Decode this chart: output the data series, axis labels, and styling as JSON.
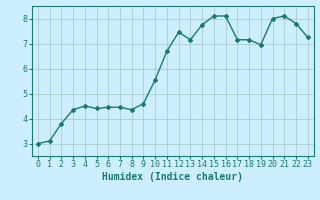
{
  "x": [
    0,
    1,
    2,
    3,
    4,
    5,
    6,
    7,
    8,
    9,
    10,
    11,
    12,
    13,
    14,
    15,
    16,
    17,
    18,
    19,
    20,
    21,
    22,
    23
  ],
  "y": [
    3.0,
    3.1,
    3.8,
    4.35,
    4.5,
    4.4,
    4.45,
    4.45,
    4.35,
    4.6,
    5.55,
    6.7,
    7.45,
    7.15,
    7.75,
    8.1,
    8.1,
    7.15,
    7.15,
    6.95,
    8.0,
    8.1,
    7.8,
    7.25
  ],
  "line_color": "#1a7a6e",
  "marker": "D",
  "marker_size": 2.0,
  "bg_color": "#cceeff",
  "grid_color": "#aacccc",
  "axis_color": "#1a7a6e",
  "xlabel": "Humidex (Indice chaleur)",
  "xlabel_fontsize": 7,
  "ylim": [
    2.5,
    8.5
  ],
  "xlim": [
    -0.5,
    23.5
  ],
  "yticks": [
    3,
    4,
    5,
    6,
    7,
    8
  ],
  "xticks": [
    0,
    1,
    2,
    3,
    4,
    5,
    6,
    7,
    8,
    9,
    10,
    11,
    12,
    13,
    14,
    15,
    16,
    17,
    18,
    19,
    20,
    21,
    22,
    23
  ],
  "tick_fontsize": 6,
  "line_width": 1.0
}
